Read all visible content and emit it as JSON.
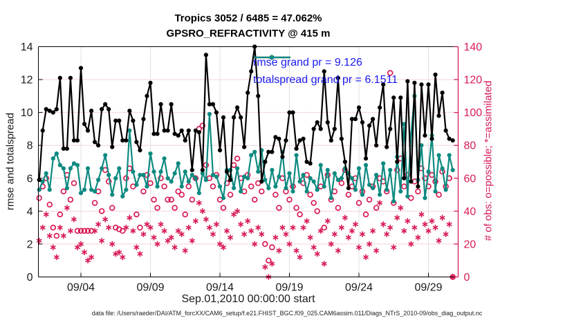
{
  "title_line1": "Tropics 3052 / 6485 = 47.062%",
  "title_line2": "GPSRO_REFRACTIVITY @ 415 m",
  "legend": {
    "rmse_label": "rmse grand pr = 9.126",
    "totalspread_label": "totalspread grand pr = 6.1511"
  },
  "axes": {
    "left_label": "rmse and totalspread",
    "right_label": "# of obs: o=possible; *=assimilated",
    "x_label": "Sep.01,2010 00:00:00 start",
    "left_ticks": [
      0,
      2,
      4,
      6,
      8,
      10,
      12,
      14
    ],
    "right_ticks": [
      0,
      20,
      40,
      60,
      80,
      100,
      120,
      140
    ],
    "x_tick_labels": [
      "09/04",
      "09/09",
      "09/14",
      "09/19",
      "09/24",
      "09/29"
    ]
  },
  "caption": "data file: /Users/raeder/DAI/ATM_forcXX/CAM6_setup/f.e21.FHIST_BGC.f09_025.CAM6assim.011/Diags_NTrS_2010-09/obs_diag_output.nc",
  "colors": {
    "rmse": "#000000",
    "totalspread": "#0d8a80",
    "obs": "#d81b54",
    "legend_text": "#1a1aee",
    "grid_h": "#f4d2da",
    "grid_v": "#e0e0e0",
    "axis": "#000000",
    "tick_label": "#1a1a1a"
  },
  "chart_data": {
    "type": "line",
    "title": "Tropics 3052 / 6485 = 47.062% — GPSRO_REFRACTIVITY @ 415 m",
    "xlabel": "Sep.01,2010 00:00:00 start",
    "ylabel_left": "rmse and totalspread",
    "ylabel_right": "# of obs: o=possible; *=assimilated",
    "grid": true,
    "legend_position": "top-center-inside",
    "x_start_day": 0,
    "x_step_days": 0.25,
    "x_tick_days": [
      3,
      8,
      13,
      18,
      23,
      28
    ],
    "ylim_left": [
      0,
      14
    ],
    "ylim_right": [
      0,
      140
    ],
    "series": [
      {
        "name": "rmse",
        "axis": "left",
        "marker": "circle-filled",
        "grand_pr": 9.126,
        "values": [
          5.9,
          8.9,
          10.2,
          10.1,
          10.0,
          10.2,
          12.1,
          7.8,
          7.8,
          12.1,
          8.3,
          8.3,
          12.7,
          9.3,
          8.9,
          10.1,
          8.2,
          8.0,
          10.2,
          10.5,
          10.2,
          7.9,
          9.5,
          9.5,
          8.3,
          8.3,
          10.1,
          9.5,
          8.2,
          7.7,
          9.6,
          11.0,
          11.8,
          8.7,
          8.7,
          10.5,
          8.9,
          8.9,
          10.5,
          8.7,
          8.6,
          8.9,
          8.3,
          8.9,
          6.5,
          8.9,
          8.8,
          6.5,
          13.5,
          10.5,
          10.5,
          10.0,
          7.7,
          9.7,
          6.4,
          5.9,
          9.7,
          10.3,
          9.7,
          7.9,
          11.2,
          12.5,
          14.0,
          11.0,
          5.8,
          7.0,
          7.6,
          7.6,
          8.5,
          8.4,
          7.3,
          8.3,
          10.0,
          10.0,
          7.8,
          8.3,
          8.4,
          7.0,
          6.9,
          9.0,
          9.4,
          9.0,
          12.5,
          9.4,
          8.3,
          9.0,
          12.1,
          8.4,
          7.0,
          5.4,
          9.6,
          9.6,
          10.3,
          9.4,
          7.2,
          9.2,
          9.6,
          8.0,
          10.3,
          11.7,
          7.9,
          9.0,
          10.9,
          7.0,
          10.9,
          6.0,
          11.9,
          5.8,
          11.8,
          5.5,
          11.7,
          8.6,
          11.7,
          8.4,
          12.3,
          9.8,
          11.2,
          8.9,
          8.4,
          8.3
        ]
      },
      {
        "name": "totalspread",
        "axis": "left",
        "marker": "circle-filled",
        "grand_pr": 6.1511,
        "values": [
          5.3,
          5.8,
          6.3,
          5.3,
          7.2,
          7.5,
          6.8,
          6.6,
          5.4,
          6.6,
          6.9,
          6.8,
          5.1,
          5.3,
          6.6,
          5.3,
          5.2,
          5.9,
          6.6,
          7.4,
          6.2,
          5.0,
          6.0,
          6.6,
          4.9,
          5.3,
          8.9,
          6.4,
          5.6,
          6.2,
          6.2,
          5.5,
          7.5,
          6.4,
          5.5,
          6.4,
          7.2,
          6.0,
          5.8,
          6.3,
          6.9,
          5.5,
          6.4,
          5.8,
          6.2,
          6.0,
          5.1,
          6.3,
          5.9,
          9.9,
          6.2,
          6.1,
          5.5,
          4.8,
          6.5,
          6.5,
          5.4,
          6.6,
          5.2,
          6.1,
          6.0,
          7.4,
          7.6,
          6.4,
          7.7,
          5.9,
          5.4,
          6.5,
          5.5,
          6.1,
          7.6,
          5.4,
          6.3,
          5.2,
          7.4,
          5.8,
          6.2,
          5.2,
          6.0,
          5.8,
          5.3,
          6.8,
          5.5,
          6.5,
          4.8,
          6.3,
          5.9,
          6.0,
          6.6,
          6.3,
          6.0,
          5.3,
          6.6,
          5.0,
          6.8,
          5.6,
          5.4,
          6.2,
          5.0,
          6.9,
          5.3,
          6.5,
          4.6,
          7.3,
          5.2,
          9.3,
          4.9,
          8.7,
          11.0,
          5.9,
          8.0,
          4.8,
          6.4,
          8.6,
          5.2,
          7.4,
          6.6,
          5.3,
          7.4,
          6.5
        ]
      },
      {
        "name": "possible",
        "axis": "right",
        "marker": "circle-open",
        "values": [
          48,
          55,
          60,
          44,
          30,
          25,
          38,
          52,
          62,
          47,
          57,
          28,
          28,
          28,
          28,
          28,
          45,
          52,
          40,
          65,
          58,
          42,
          30,
          29,
          28,
          60,
          66,
          55,
          38,
          30,
          52,
          62,
          57,
          47,
          42,
          60,
          55,
          47,
          47,
          42,
          52,
          50,
          38,
          55,
          47,
          60,
          90,
          92,
          68,
          60,
          55,
          62,
          47,
          42,
          57,
          50,
          68,
          72,
          60,
          52,
          62,
          55,
          47,
          57,
          52,
          20,
          10,
          18,
          50,
          42,
          60,
          52,
          47,
          55,
          42,
          38,
          57,
          62,
          50,
          45,
          40,
          55,
          30,
          62,
          47,
          52,
          42,
          57,
          65,
          50,
          55,
          60,
          45,
          52,
          38,
          47,
          55,
          42,
          60,
          58,
          52,
          124,
          45,
          65,
          72,
          55,
          62,
          48,
          58,
          52,
          66,
          60,
          55,
          62,
          58,
          50,
          64,
          55,
          60,
          0
        ]
      },
      {
        "name": "assimilated",
        "axis": "right",
        "marker": "asterisk",
        "values": [
          22,
          30,
          38,
          25,
          18,
          12,
          30,
          25,
          42,
          28,
          35,
          18,
          20,
          15,
          10,
          12,
          28,
          32,
          22,
          35,
          30,
          20,
          14,
          15,
          12,
          30,
          36,
          28,
          18,
          14,
          26,
          32,
          30,
          24,
          20,
          32,
          28,
          22,
          24,
          18,
          28,
          26,
          16,
          30,
          22,
          34,
          45,
          40,
          35,
          30,
          26,
          32,
          20,
          18,
          28,
          24,
          38,
          40,
          32,
          26,
          34,
          28,
          20,
          30,
          26,
          6,
          0,
          8,
          24,
          16,
          30,
          26,
          20,
          30,
          16,
          12,
          30,
          34,
          24,
          18,
          14,
          28,
          8,
          34,
          20,
          26,
          16,
          30,
          36,
          24,
          28,
          32,
          18,
          26,
          12,
          20,
          28,
          16,
          45,
          32,
          26,
          30,
          18,
          36,
          42,
          28,
          34,
          20,
          30,
          24,
          38,
          32,
          28,
          34,
          30,
          22,
          36,
          26,
          32,
          0
        ]
      }
    ]
  }
}
